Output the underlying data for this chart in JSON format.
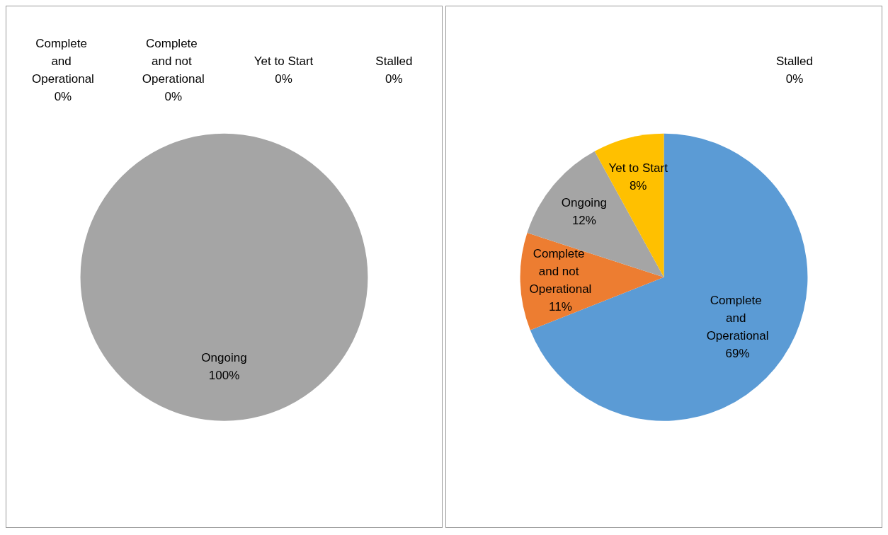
{
  "chart_data": [
    {
      "type": "pie",
      "categories": [
        "Complete and Operational",
        "Complete and not Operational",
        "Ongoing",
        "Yet to Start",
        "Stalled"
      ],
      "values": [
        0,
        0,
        100,
        0,
        0
      ],
      "value_labels": [
        "0%",
        "0%",
        "100%",
        "0%",
        "0%"
      ],
      "colors": [
        "#5b9bd5",
        "#ed7d31",
        "#a5a5a5",
        "#ffc000",
        "#4472c4"
      ]
    },
    {
      "type": "pie",
      "categories": [
        "Complete and Operational",
        "Complete and not Operational",
        "Ongoing",
        "Yet to Start",
        "Stalled"
      ],
      "values": [
        69,
        11,
        12,
        8,
        0
      ],
      "value_labels": [
        "69%",
        "11%",
        "12%",
        "8%",
        "0%"
      ],
      "colors": [
        "#5b9bd5",
        "#ed7d31",
        "#a5a5a5",
        "#ffc000",
        "#4472c4"
      ]
    }
  ]
}
